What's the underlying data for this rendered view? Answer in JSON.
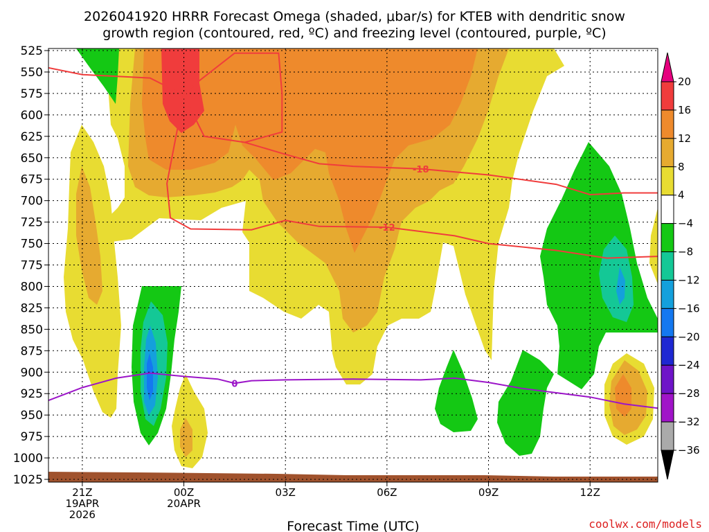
{
  "chart_data": {
    "type": "heatmap",
    "title_line1": "2026041920 HRRR Forecast Omega (shaded, μbar/s) for KTEB with dendritic snow",
    "title_line2": "growth region (contoured, red, ºC) and freezing level (contoured, purple, ºC)",
    "xlabel": "Forecast Time (UTC)",
    "watermark": "coolwx.com/models",
    "y_ticks": [
      525,
      550,
      575,
      600,
      625,
      650,
      675,
      700,
      725,
      750,
      775,
      800,
      825,
      850,
      875,
      900,
      925,
      950,
      975,
      1000,
      1025
    ],
    "y_range_hpa": [
      525,
      1025
    ],
    "x_range_hours": [
      -1,
      17
    ],
    "x_ticks": [
      {
        "hour": 0,
        "lines": [
          "21Z",
          "19APR",
          "2026"
        ]
      },
      {
        "hour": 3,
        "lines": [
          "00Z",
          "20APR"
        ]
      },
      {
        "hour": 6,
        "lines": [
          "03Z"
        ]
      },
      {
        "hour": 9,
        "lines": [
          "06Z"
        ]
      },
      {
        "hour": 12,
        "lines": [
          "09Z"
        ]
      },
      {
        "hour": 15,
        "lines": [
          "12Z"
        ]
      }
    ],
    "colorbar": {
      "labels": [
        "20",
        "16",
        "12",
        "8",
        "4",
        "−4",
        "−8",
        "−12",
        "−16",
        "−20",
        "−24",
        "−28",
        "−32",
        "−36"
      ],
      "bins": [
        {
          "color": "#e6007e"
        },
        {
          "color": "#f03c3c"
        },
        {
          "color": "#ee8a2c"
        },
        {
          "color": "#e6aa30"
        },
        {
          "color": "#e8dc32"
        },
        {
          "color": "#ffffff"
        },
        {
          "color": "#14c814"
        },
        {
          "color": "#14c896"
        },
        {
          "color": "#14a0dc"
        },
        {
          "color": "#1478f0"
        },
        {
          "color": "#1e28d2"
        },
        {
          "color": "#6e14c8"
        },
        {
          "color": "#a014c8"
        },
        {
          "color": "#aaaaaa"
        },
        {
          "color": "#000000"
        }
      ]
    },
    "contours": [
      {
        "name": "-18",
        "label": "-18",
        "color": "#f03c3c",
        "points": [
          [
            -1,
            545
          ],
          [
            0,
            553
          ],
          [
            2,
            557
          ],
          [
            3,
            577
          ],
          [
            3.6,
            625
          ],
          [
            4.8,
            632
          ],
          [
            6,
            646
          ],
          [
            7,
            657
          ],
          [
            8,
            660
          ],
          [
            10,
            663
          ],
          [
            12,
            670
          ],
          [
            14,
            681
          ],
          [
            15,
            693
          ],
          [
            16,
            691
          ],
          [
            17,
            691
          ]
        ]
      },
      {
        "name": "dgz-left-boundary",
        "label": "",
        "color": "#f03c3c",
        "points": [
          [
            3,
            577
          ],
          [
            2.5,
            680
          ],
          [
            2.6,
            720
          ],
          [
            3.2,
            733
          ],
          [
            5,
            734
          ],
          [
            6,
            723
          ],
          [
            7,
            730
          ],
          [
            9,
            731
          ],
          [
            11,
            741
          ],
          [
            12,
            750
          ],
          [
            14,
            758
          ],
          [
            15.5,
            767
          ],
          [
            17,
            765
          ]
        ]
      },
      {
        "name": "-12",
        "label": "-12",
        "color": "#f03c3c",
        "points": [
          [
            9,
            731
          ]
        ]
      },
      {
        "name": "dgz-upper-boundary",
        "label": "",
        "color": "#f03c3c",
        "points": [
          [
            3,
            577
          ],
          [
            3.3,
            565
          ],
          [
            4.5,
            528
          ],
          [
            5.8,
            528
          ],
          [
            5.9,
            575
          ],
          [
            5.9,
            620
          ],
          [
            4.8,
            632
          ]
        ]
      },
      {
        "name": "0",
        "label": "0",
        "color": "#9b14c8",
        "points": [
          [
            -1,
            933
          ],
          [
            0,
            918
          ],
          [
            1,
            907
          ],
          [
            2,
            901
          ],
          [
            3,
            905
          ],
          [
            4,
            908
          ],
          [
            4.5,
            913
          ],
          [
            5,
            910
          ],
          [
            6,
            909
          ],
          [
            8,
            908
          ],
          [
            10,
            909
          ],
          [
            11,
            907
          ],
          [
            12,
            912
          ],
          [
            13,
            919
          ],
          [
            14,
            924
          ],
          [
            15,
            929
          ],
          [
            16,
            937
          ],
          [
            17,
            942
          ]
        ]
      }
    ],
    "regions_omega": [
      {
        "name": "upper-yellow",
        "value": 4,
        "color": "#e8dc32"
      },
      {
        "name": "upper-gold",
        "value": 8,
        "color": "#e6aa30"
      },
      {
        "name": "upper-orange",
        "value": 12,
        "color": "#ee8a2c"
      },
      {
        "name": "upper-red",
        "value": 16,
        "color": "#f03c3c"
      },
      {
        "name": "green-areas",
        "value": -4,
        "color": "#14c814"
      },
      {
        "name": "teal-areas",
        "value": -8,
        "color": "#14c896"
      },
      {
        "name": "blue-areas",
        "value": -12,
        "color": "#14a0dc"
      }
    ]
  }
}
